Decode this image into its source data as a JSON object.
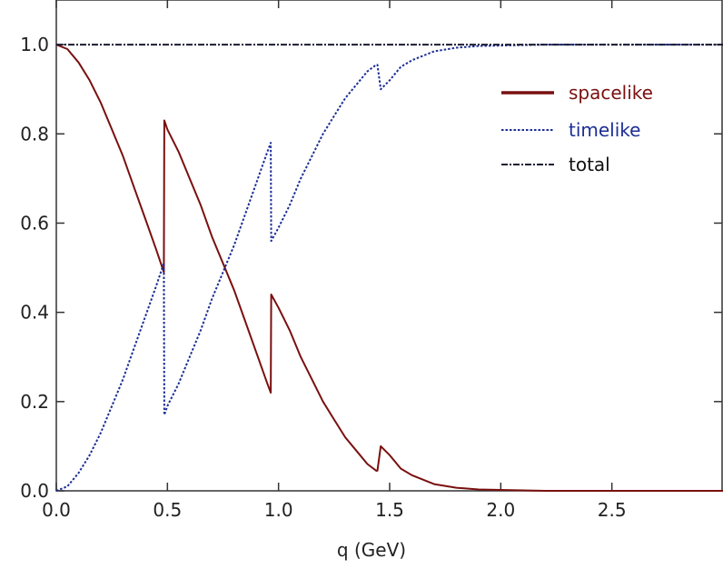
{
  "chart_data": {
    "type": "line",
    "title": "",
    "xlabel": "q (GeV)",
    "ylabel": "",
    "xlim": [
      0.0,
      3.0
    ],
    "ylim": [
      0.0,
      1.1
    ],
    "grid": false,
    "legend_position": "top-right",
    "x_ticks": [
      0.0,
      0.5,
      1.0,
      1.5,
      2.0,
      2.5
    ],
    "x_tick_labels": [
      "0.0",
      "0.5",
      "1.0",
      "1.5",
      "2.0",
      "2.5"
    ],
    "y_ticks": [
      0.0,
      0.2,
      0.4,
      0.6,
      0.8,
      1.0
    ],
    "y_tick_labels": [
      "0.0",
      "0.2",
      "0.4",
      "0.6",
      "0.8",
      "1.0"
    ],
    "series": [
      {
        "name": "spacelike",
        "color": "#7a1010",
        "style": "solid",
        "x": [
          0.0,
          0.05,
          0.1,
          0.15,
          0.2,
          0.25,
          0.3,
          0.35,
          0.4,
          0.45,
          0.484,
          0.486,
          0.5,
          0.55,
          0.6,
          0.65,
          0.7,
          0.75,
          0.8,
          0.85,
          0.9,
          0.95,
          0.965,
          0.967,
          1.0,
          1.05,
          1.1,
          1.15,
          1.2,
          1.25,
          1.3,
          1.35,
          1.4,
          1.44,
          1.445,
          1.46,
          1.5,
          1.55,
          1.6,
          1.7,
          1.8,
          1.9,
          2.0,
          2.1,
          2.2,
          2.4,
          2.6,
          2.8,
          3.0
        ],
        "y": [
          1.0,
          0.99,
          0.96,
          0.92,
          0.87,
          0.81,
          0.75,
          0.68,
          0.61,
          0.54,
          0.49,
          0.83,
          0.81,
          0.76,
          0.7,
          0.64,
          0.57,
          0.51,
          0.45,
          0.38,
          0.31,
          0.24,
          0.22,
          0.44,
          0.41,
          0.36,
          0.3,
          0.25,
          0.2,
          0.16,
          0.12,
          0.09,
          0.06,
          0.045,
          0.045,
          0.1,
          0.08,
          0.05,
          0.035,
          0.015,
          0.007,
          0.003,
          0.002,
          0.001,
          0.0,
          0.0,
          0.0,
          0.0,
          0.0
        ]
      },
      {
        "name": "timelike",
        "color": "#1c2e96",
        "style": "dotted",
        "x": [
          0.0,
          0.05,
          0.1,
          0.15,
          0.2,
          0.25,
          0.3,
          0.35,
          0.4,
          0.45,
          0.484,
          0.486,
          0.5,
          0.55,
          0.6,
          0.65,
          0.7,
          0.75,
          0.8,
          0.85,
          0.9,
          0.95,
          0.965,
          0.967,
          1.0,
          1.05,
          1.1,
          1.15,
          1.2,
          1.25,
          1.3,
          1.35,
          1.4,
          1.44,
          1.445,
          1.46,
          1.5,
          1.55,
          1.6,
          1.7,
          1.8,
          1.9,
          2.0,
          2.1,
          2.2,
          2.4,
          2.6,
          2.8,
          3.0
        ],
        "y": [
          0.0,
          0.01,
          0.04,
          0.08,
          0.13,
          0.19,
          0.25,
          0.32,
          0.39,
          0.46,
          0.51,
          0.17,
          0.19,
          0.24,
          0.3,
          0.36,
          0.43,
          0.49,
          0.55,
          0.62,
          0.69,
          0.76,
          0.78,
          0.56,
          0.59,
          0.64,
          0.7,
          0.75,
          0.8,
          0.84,
          0.88,
          0.91,
          0.94,
          0.955,
          0.955,
          0.9,
          0.92,
          0.95,
          0.965,
          0.985,
          0.993,
          0.997,
          0.998,
          0.999,
          1.0,
          1.0,
          1.0,
          1.0,
          1.0
        ]
      },
      {
        "name": "total",
        "color": "#1a1a33",
        "style": "dashdot",
        "x": [
          0.0,
          3.0
        ],
        "y": [
          1.0,
          1.0
        ]
      }
    ]
  }
}
